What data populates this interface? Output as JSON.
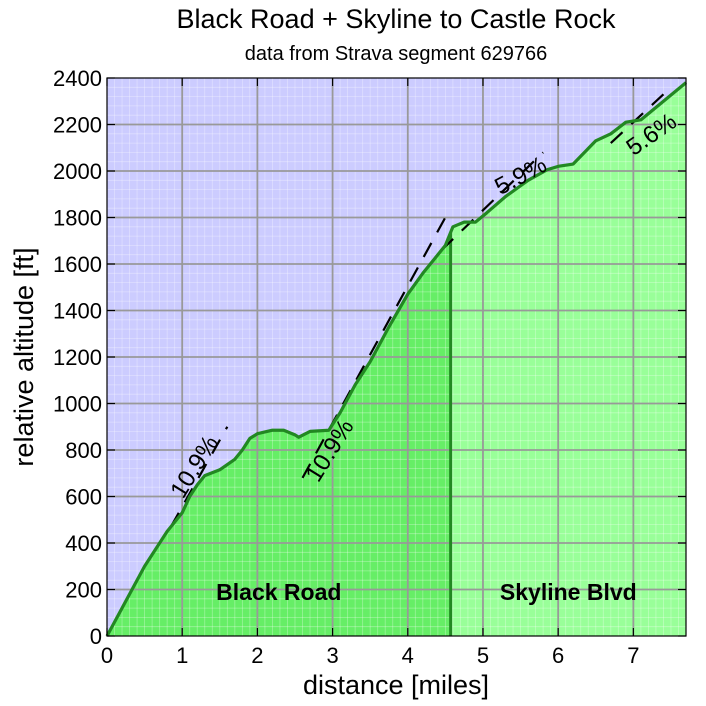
{
  "chart_data": {
    "type": "area",
    "title": "Black Road + Skyline to Castle Rock",
    "subtitle": "data from Strava segment 629766",
    "xlabel": "distance [miles]",
    "ylabel": "relative altitude [ft]",
    "xlim": [
      0,
      7.7
    ],
    "ylim": [
      0,
      2400
    ],
    "x_ticks": [
      "0",
      "1",
      "2",
      "3",
      "4",
      "5",
      "6",
      "7"
    ],
    "y_ticks": [
      "0",
      "200",
      "400",
      "600",
      "800",
      "1000",
      "1200",
      "1400",
      "1600",
      "1800",
      "2000",
      "2200",
      "2400"
    ],
    "grid": true,
    "colors": {
      "sky": "#ccccff",
      "fill_segment1": "#66ee66",
      "fill_segment2": "#99ff99",
      "profile_line": "#228822",
      "grid_major": "#999999",
      "grid_minor": "#ddddff"
    },
    "split_x": 4.57,
    "regions": [
      {
        "label": "Black Road",
        "x_start": 0,
        "x_end": 4.57
      },
      {
        "label": "Skyline Blvd",
        "x_start": 4.57,
        "x_end": 7.7
      }
    ],
    "profile": [
      [
        0,
        0
      ],
      [
        0.2,
        120
      ],
      [
        0.5,
        300
      ],
      [
        0.8,
        450
      ],
      [
        1.0,
        530
      ],
      [
        1.1,
        600
      ],
      [
        1.2,
        650
      ],
      [
        1.3,
        690
      ],
      [
        1.5,
        715
      ],
      [
        1.7,
        760
      ],
      [
        1.8,
        800
      ],
      [
        1.9,
        850
      ],
      [
        2.0,
        870
      ],
      [
        2.2,
        885
      ],
      [
        2.35,
        885
      ],
      [
        2.5,
        865
      ],
      [
        2.55,
        855
      ],
      [
        2.7,
        880
      ],
      [
        2.95,
        885
      ],
      [
        3.1,
        960
      ],
      [
        3.3,
        1080
      ],
      [
        3.5,
        1180
      ],
      [
        3.75,
        1330
      ],
      [
        4.0,
        1470
      ],
      [
        4.2,
        1560
      ],
      [
        4.35,
        1620
      ],
      [
        4.5,
        1680
      ],
      [
        4.6,
        1760
      ],
      [
        4.75,
        1780
      ],
      [
        4.9,
        1780
      ],
      [
        5.05,
        1820
      ],
      [
        5.3,
        1890
      ],
      [
        5.6,
        1960
      ],
      [
        5.85,
        2005
      ],
      [
        6.0,
        2020
      ],
      [
        6.2,
        2030
      ],
      [
        6.35,
        2080
      ],
      [
        6.5,
        2130
      ],
      [
        6.7,
        2160
      ],
      [
        6.9,
        2210
      ],
      [
        7.1,
        2220
      ],
      [
        7.4,
        2300
      ],
      [
        7.7,
        2380
      ]
    ],
    "annotations": [
      {
        "text": "10.9%",
        "x": 1.25,
        "y": 710,
        "angle": -58
      },
      {
        "text": "10.9%",
        "x": 3.05,
        "y": 780,
        "angle": -58
      },
      {
        "text": "5.9%",
        "x": 5.55,
        "y": 1950,
        "angle": -28
      },
      {
        "text": "5.6%",
        "x": 7.3,
        "y": 2130,
        "angle": -35
      }
    ],
    "grade_lines": [
      {
        "x1": 0.85,
        "y1": 470,
        "x2": 1.6,
        "y2": 900
      },
      {
        "x1": 2.6,
        "y1": 680,
        "x2": 4.55,
        "y2": 1830
      },
      {
        "x1": 4.45,
        "y1": 1660,
        "x2": 5.8,
        "y2": 2080
      },
      {
        "x1": 6.7,
        "y1": 2120,
        "x2": 7.4,
        "y2": 2330
      }
    ]
  }
}
